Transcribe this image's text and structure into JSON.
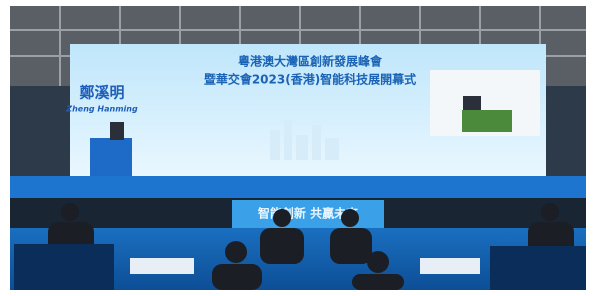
{
  "overlay": {
    "name_zh": "鄭溪明",
    "name_en": "Zheng Hanming"
  },
  "screen": {
    "title_line1": "粵港澳大灣區創新發展峰會",
    "title_line2": "暨華交會2023(香港)智能科技展開幕式"
  },
  "banner": {
    "text": "智能創新 共贏未來"
  }
}
